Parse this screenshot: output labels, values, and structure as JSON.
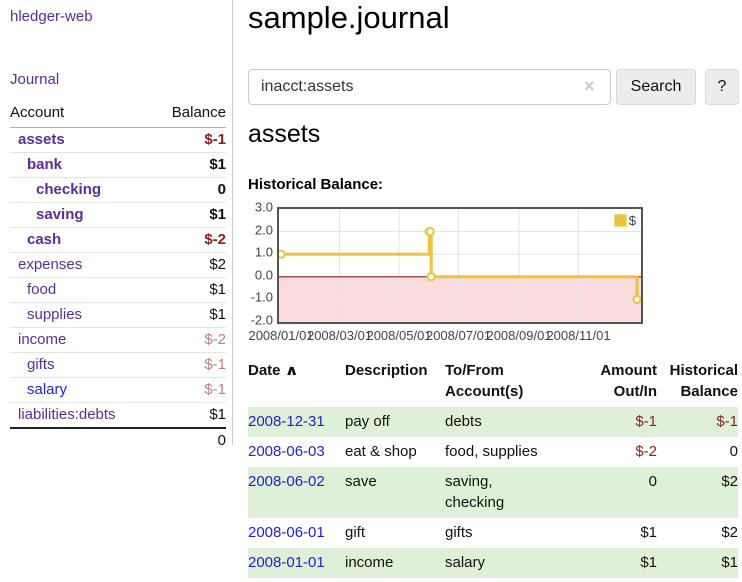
{
  "app": {
    "brand": "hledger-web",
    "nav": {
      "journal": "Journal"
    }
  },
  "sidebar": {
    "accounts_header": {
      "account": "Account",
      "balance": "Balance"
    },
    "accounts": [
      {
        "name": "assets",
        "balance": "$-1",
        "indent": 0,
        "bold": true,
        "balance_style": "neg-strong"
      },
      {
        "name": "bank",
        "balance": "$1",
        "indent": 1,
        "bold": true,
        "balance_style": "pos"
      },
      {
        "name": "checking",
        "balance": "0",
        "indent": 2,
        "bold": true,
        "balance_style": "pos"
      },
      {
        "name": "saving",
        "balance": "$1",
        "indent": 2,
        "bold": true,
        "balance_style": "pos"
      },
      {
        "name": "cash",
        "balance": "$-2",
        "indent": 1,
        "bold": true,
        "balance_style": "neg-strong"
      },
      {
        "name": "expenses",
        "balance": "$2",
        "indent": 0,
        "bold": false,
        "balance_style": "pos"
      },
      {
        "name": "food",
        "balance": "$1",
        "indent": 1,
        "bold": false,
        "balance_style": "pos"
      },
      {
        "name": "supplies",
        "balance": "$1",
        "indent": 1,
        "bold": false,
        "balance_style": "pos"
      },
      {
        "name": "income",
        "balance": "$-2",
        "indent": 0,
        "bold": false,
        "balance_style": "neg-soft"
      },
      {
        "name": "gifts",
        "balance": "$-1",
        "indent": 1,
        "bold": false,
        "balance_style": "neg-soft"
      },
      {
        "name": "salary",
        "balance": "$-1",
        "indent": 1,
        "bold": false,
        "balance_style": "neg-soft",
        "link_style": "blue"
      },
      {
        "name": "liabilities:debts",
        "balance": "$1",
        "indent": 0,
        "bold": false,
        "balance_style": "pos"
      }
    ],
    "total": "0"
  },
  "header": {
    "title": "sample.journal"
  },
  "search": {
    "value": "inacct:assets",
    "clear_icon": "×",
    "button": "Search",
    "help_button": "?"
  },
  "account_page": {
    "title": "assets",
    "chart_label": "Historical Balance:"
  },
  "chart_data": {
    "type": "line",
    "step": true,
    "title": "Historical Balance",
    "series": [
      {
        "name": "$",
        "x": [
          "2008-01-01",
          "2008-06-01",
          "2008-06-02",
          "2008-06-03",
          "2008-12-31"
        ],
        "values": [
          1,
          2,
          2,
          0,
          -1
        ]
      }
    ],
    "xrange": [
      "2008/01/01",
      "2009/01/01"
    ],
    "ylim": [
      -2,
      3
    ],
    "yticks": [
      "3.0",
      "2.0",
      "1.0",
      "0.0",
      "-1.0",
      "-2.0"
    ],
    "xticks": [
      "2008/01/01",
      "2008/03/01",
      "2008/05/01",
      "2008/07/01",
      "2008/09/01",
      "2008/11/01"
    ],
    "legend": {
      "label": "$",
      "position": "top-right"
    },
    "grid": true,
    "colors": {
      "line": "#EDC240",
      "marker_fill": "#FFFFFF",
      "negative_region": "#FBDCDC",
      "zero_line": "#8B1A1A",
      "border": "#545454"
    }
  },
  "register": {
    "headers": {
      "date": "Date",
      "sort_icon": "∧",
      "description": "Description",
      "tofrom_line1": "To/From",
      "tofrom_line2": "Account(s)",
      "amount_line1": "Amount",
      "amount_line2": "Out/In",
      "balance_line1": "Historical",
      "balance_line2": "Balance"
    },
    "rows": [
      {
        "date": "2008-12-31",
        "description": "pay off",
        "accounts": "debts",
        "amount": "$-1",
        "balance": "$-1",
        "amount_neg": true,
        "balance_neg": true,
        "shaded": true
      },
      {
        "date": "2008-06-03",
        "description": "eat & shop",
        "accounts": "food, supplies",
        "amount": "$-2",
        "balance": "0",
        "amount_neg": true,
        "balance_neg": false,
        "shaded": false
      },
      {
        "date": "2008-06-02",
        "description": "save",
        "accounts": "saving, checking",
        "amount": "0",
        "balance": "$2",
        "amount_neg": false,
        "balance_neg": false,
        "shaded": true
      },
      {
        "date": "2008-06-01",
        "description": "gift",
        "accounts": "gifts",
        "amount": "$1",
        "balance": "$2",
        "amount_neg": false,
        "balance_neg": false,
        "shaded": false
      },
      {
        "date": "2008-01-01",
        "description": "income",
        "accounts": "salary",
        "amount": "$1",
        "balance": "$1",
        "amount_neg": false,
        "balance_neg": false,
        "shaded": true
      }
    ]
  }
}
